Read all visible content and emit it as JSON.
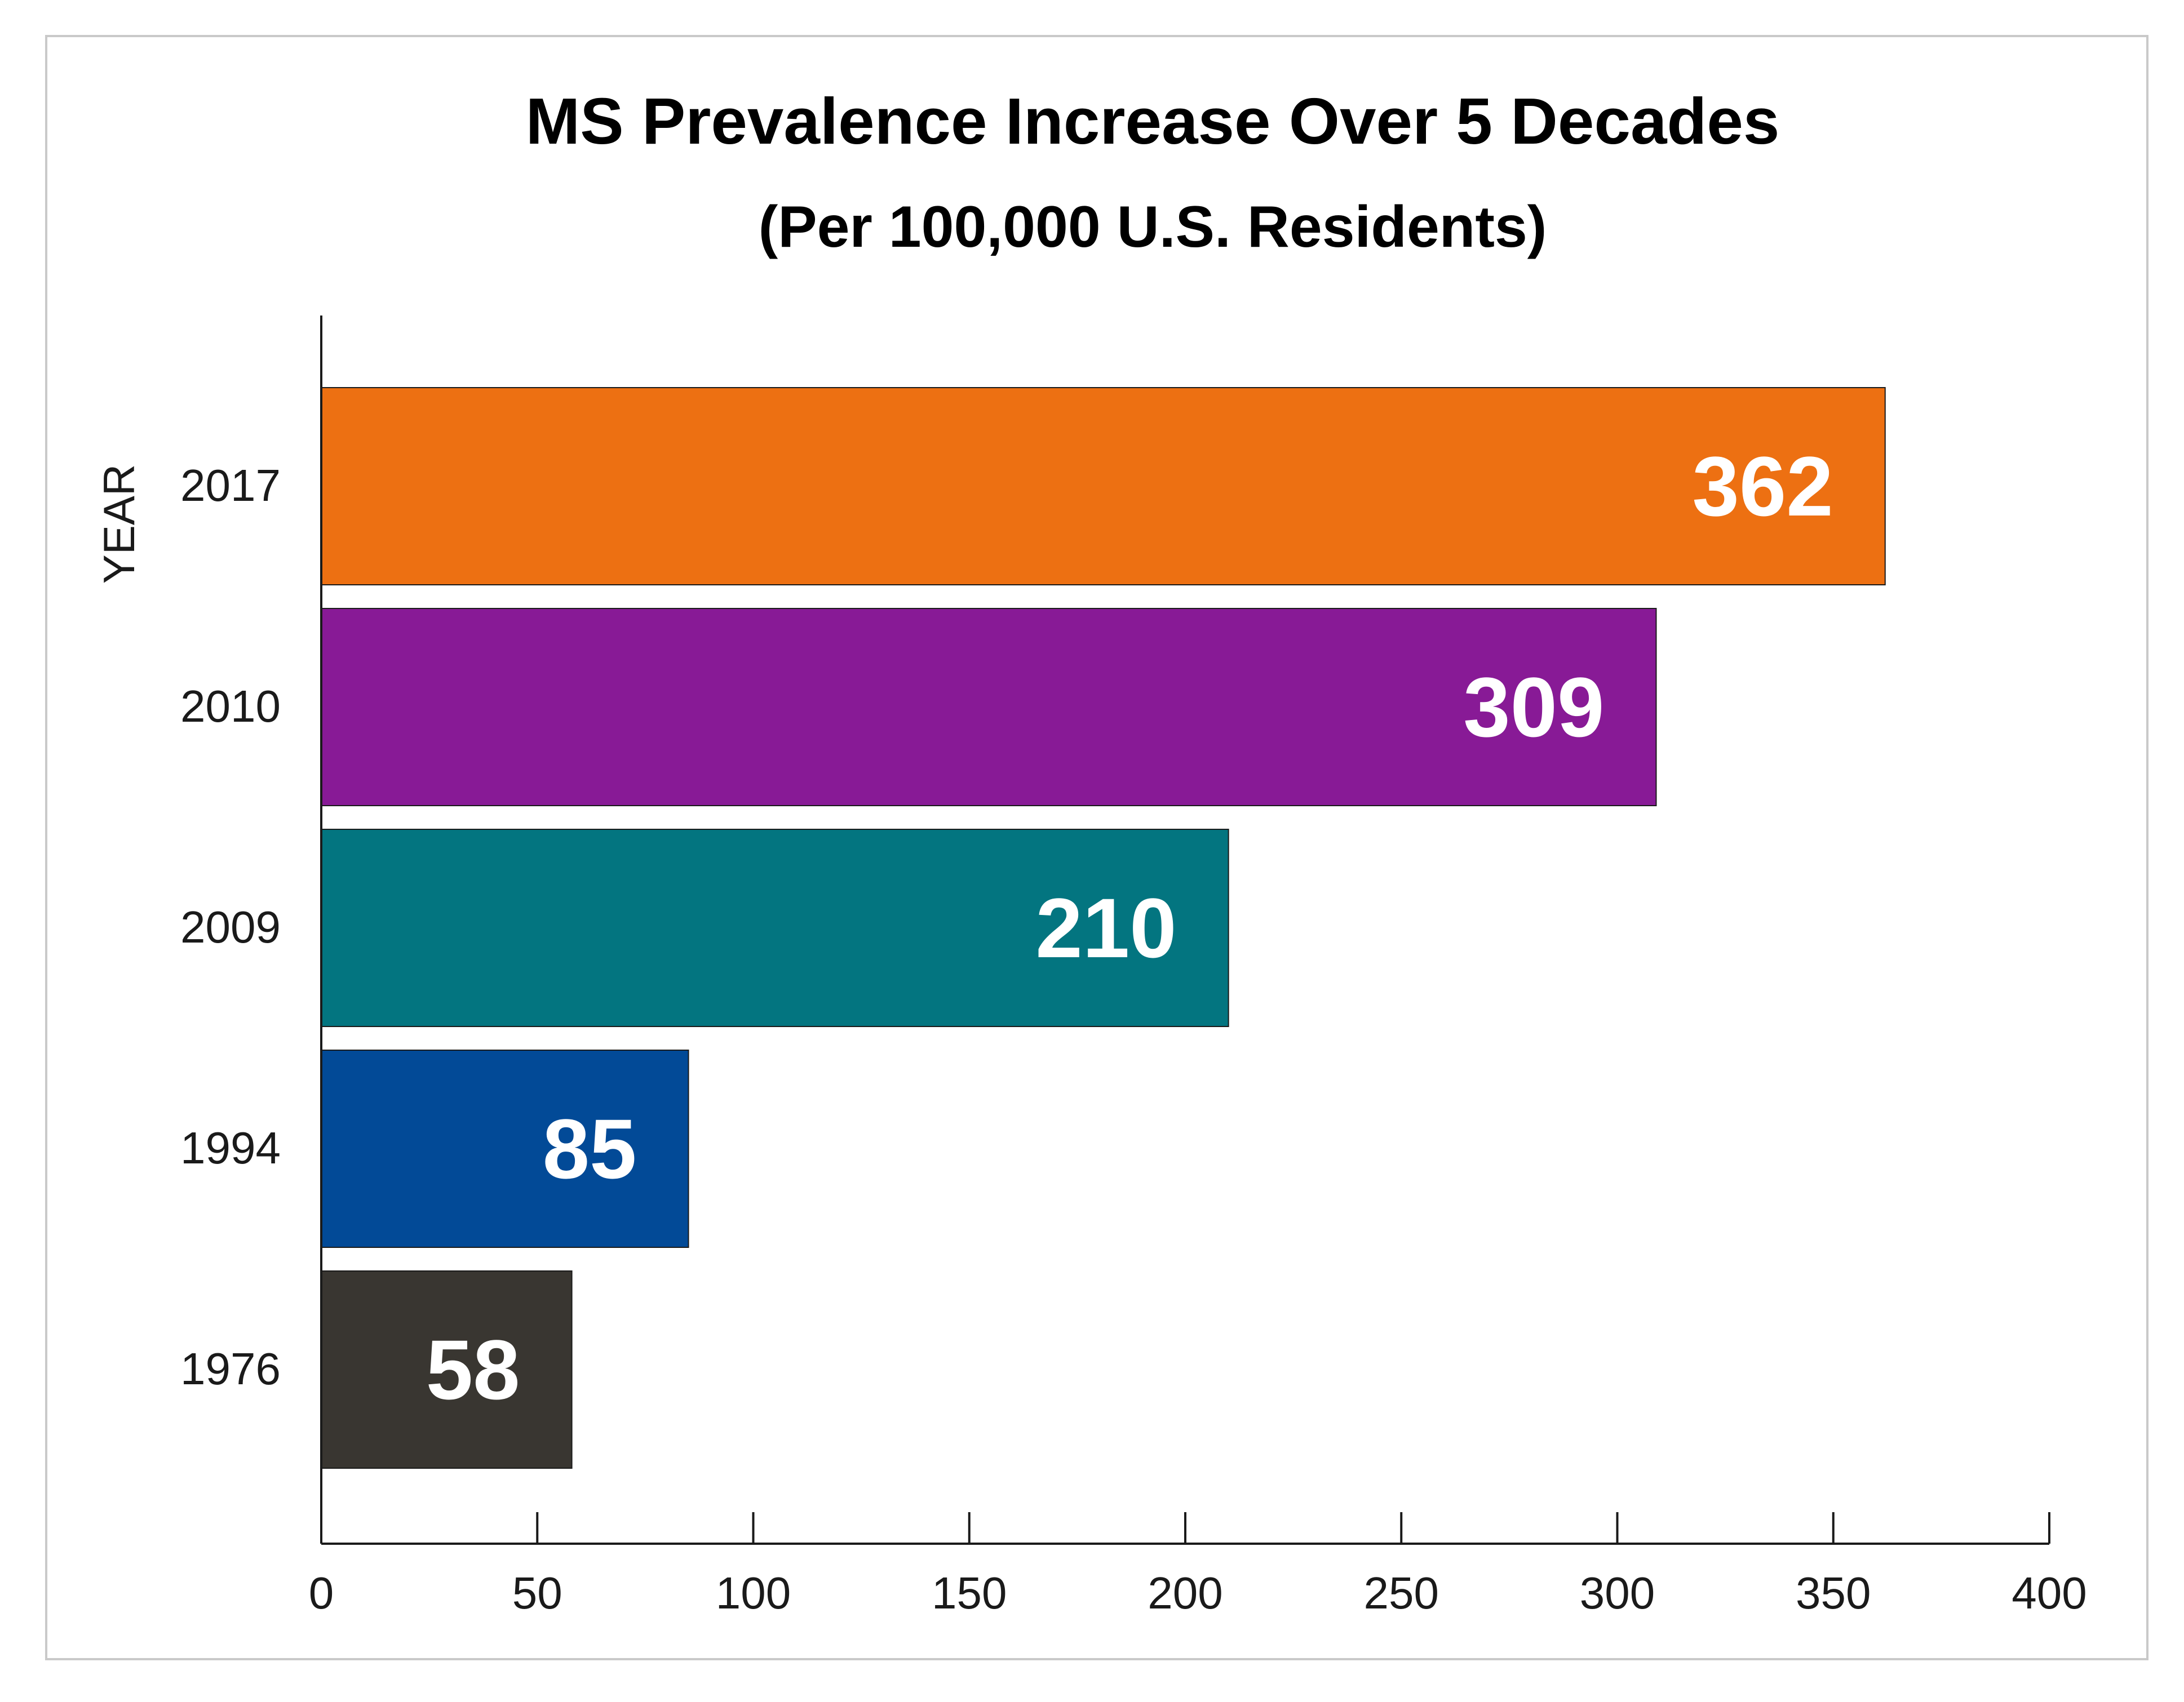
{
  "chart_data": {
    "type": "bar",
    "orientation": "horizontal",
    "title": "MS Prevalence Increase Over 5 Decades",
    "subtitle": "(Per 100,000 U.S. Residents)",
    "ylabel": "YEAR",
    "xlabel": "",
    "categories": [
      "2017",
      "2010",
      "2009",
      "1994",
      "1976"
    ],
    "values": [
      362,
      309,
      210,
      85,
      58
    ],
    "value_labels": [
      "362",
      "309",
      "210",
      "85",
      "58"
    ],
    "colors": [
      "#ED7012",
      "#881A96",
      "#037580",
      "#024A97",
      "#393631"
    ],
    "xlim": [
      0,
      400
    ],
    "xticks": [
      0,
      50,
      100,
      150,
      200,
      250,
      300,
      350,
      400
    ],
    "xtick_labels": [
      "0",
      "50",
      "100",
      "150",
      "200",
      "250",
      "300",
      "350",
      "400"
    ],
    "grid": false,
    "legend": "none"
  }
}
